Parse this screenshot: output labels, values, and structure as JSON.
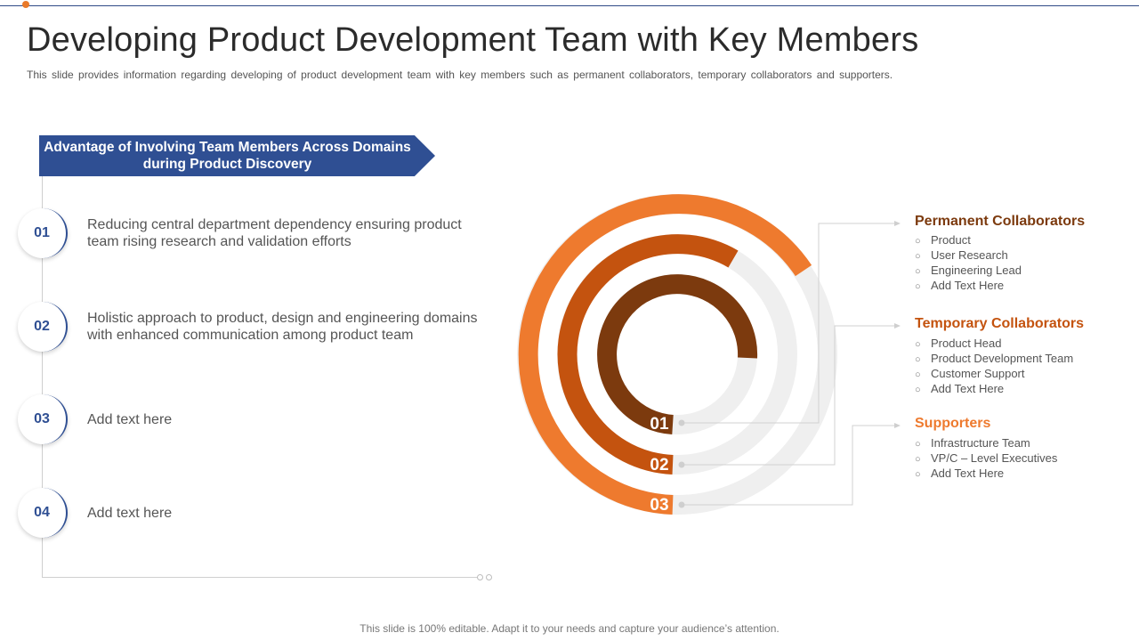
{
  "title": "Developing Product Development Team with Key Members",
  "subtitle": "This slide provides information regarding developing of product development team with key members such as permanent collaborators, temporary collaborators and supporters.",
  "banner": "Advantage of Involving Team Members Across Domains during Product Discovery",
  "steps": [
    {
      "number": "01",
      "text": "Reducing central department dependency ensuring product team rising research and validation efforts"
    },
    {
      "number": "02",
      "text": "Holistic approach to product, design and engineering domains with enhanced communication among product team"
    },
    {
      "number": "03",
      "text": "Add text here"
    },
    {
      "number": "04",
      "text": "Add text here"
    }
  ],
  "rings": [
    {
      "label": "01",
      "color": "#7c3a0e"
    },
    {
      "label": "02",
      "color": "#c4530f"
    },
    {
      "label": "03",
      "color": "#ee7a2e"
    }
  ],
  "groups": [
    {
      "title": "Permanent Collaborators",
      "color": "#7c3a0e",
      "items": [
        "Product",
        "User Research",
        "Engineering Lead",
        "Add Text Here"
      ]
    },
    {
      "title": "Temporary Collaborators",
      "color": "#c4530f",
      "items": [
        "Product Head",
        "Product Development  Team",
        "Customer Support",
        "Add Text Here"
      ]
    },
    {
      "title": "Supporters",
      "color": "#ee7a2e",
      "items": [
        "Infrastructure  Team",
        "VP/C – Level Executives",
        "Add Text Here"
      ]
    }
  ],
  "footer": "This slide is 100% editable. Adapt it to your needs and capture your audience’s attention.",
  "colors": {
    "accent_blue": "#2f4f93",
    "ring_track": "#efefef"
  }
}
